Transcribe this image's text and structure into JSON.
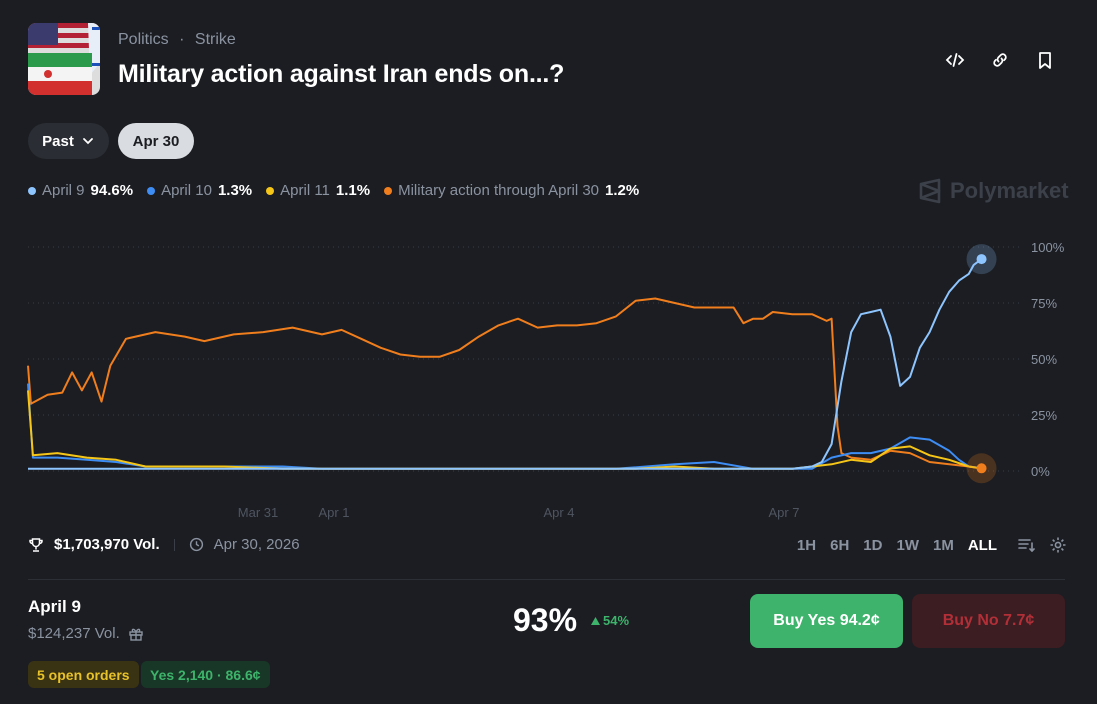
{
  "header": {
    "category": "Politics",
    "separator": "·",
    "subcategory": "Strike",
    "title": "Military action against Iran ends on...?"
  },
  "filters": {
    "past_label": "Past",
    "date_label": "Apr 30"
  },
  "legend": [
    {
      "label": "April 9",
      "value": "94.6%",
      "color": "#8ec5ff"
    },
    {
      "label": "April 10",
      "value": "1.3%",
      "color": "#3d8df5"
    },
    {
      "label": "April 11",
      "value": "1.1%",
      "color": "#f5c518"
    },
    {
      "label": "Military action through April 30",
      "value": "1.2%",
      "color": "#f07e1d"
    }
  ],
  "brand": "Polymarket",
  "chart_data": {
    "type": "line",
    "x_ticks": [
      "Mar 31",
      "Apr 1",
      "Apr 4",
      "Apr 7"
    ],
    "y_ticks": [
      "100%",
      "75%",
      "50%",
      "25%",
      "0%"
    ],
    "ylim": [
      0,
      100
    ],
    "grid": true,
    "series": [
      {
        "name": "Military action through April 30",
        "color": "#f07e1d",
        "values": [
          [
            0,
            47
          ],
          [
            0.3,
            30
          ],
          [
            2,
            34
          ],
          [
            3.5,
            35
          ],
          [
            4.5,
            44
          ],
          [
            5.5,
            36
          ],
          [
            6.5,
            44
          ],
          [
            7.5,
            31
          ],
          [
            8.4,
            47
          ],
          [
            10,
            59
          ],
          [
            13,
            62
          ],
          [
            16,
            60
          ],
          [
            18,
            58
          ],
          [
            21,
            61
          ],
          [
            24,
            62
          ],
          [
            27,
            64
          ],
          [
            30,
            61
          ],
          [
            32,
            63
          ],
          [
            34,
            59
          ],
          [
            36,
            55
          ],
          [
            38,
            52
          ],
          [
            40,
            51
          ],
          [
            42,
            51
          ],
          [
            44,
            54
          ],
          [
            46,
            60
          ],
          [
            48,
            65
          ],
          [
            50,
            68
          ],
          [
            52,
            64
          ],
          [
            54,
            65
          ],
          [
            56,
            65
          ],
          [
            58,
            66
          ],
          [
            60,
            69
          ],
          [
            62,
            76
          ],
          [
            64,
            77
          ],
          [
            66,
            75
          ],
          [
            68,
            73
          ],
          [
            70,
            73
          ],
          [
            72,
            73
          ],
          [
            73,
            66
          ],
          [
            74,
            68
          ],
          [
            75,
            68
          ],
          [
            76,
            71
          ],
          [
            78,
            70
          ],
          [
            80,
            70
          ],
          [
            81.5,
            67
          ],
          [
            82,
            68
          ],
          [
            82.6,
            20
          ],
          [
            83,
            8
          ],
          [
            84,
            6
          ],
          [
            86,
            5
          ],
          [
            88,
            9
          ],
          [
            90,
            8
          ],
          [
            92,
            4
          ],
          [
            94,
            3
          ],
          [
            96,
            2
          ],
          [
            97.3,
            1.2
          ]
        ]
      },
      {
        "name": "April 10",
        "color": "#3d8df5",
        "values": [
          [
            0,
            39
          ],
          [
            0.5,
            6
          ],
          [
            3,
            6
          ],
          [
            6,
            5
          ],
          [
            9,
            4
          ],
          [
            12,
            2
          ],
          [
            20,
            2
          ],
          [
            26,
            2
          ],
          [
            30,
            1
          ],
          [
            36,
            1
          ],
          [
            42,
            1
          ],
          [
            48,
            1
          ],
          [
            54,
            1
          ],
          [
            60,
            1
          ],
          [
            66,
            3
          ],
          [
            70,
            4
          ],
          [
            74,
            1
          ],
          [
            78,
            1
          ],
          [
            80,
            1
          ],
          [
            82,
            6
          ],
          [
            84,
            8
          ],
          [
            86,
            8
          ],
          [
            88,
            10
          ],
          [
            90,
            15
          ],
          [
            92,
            14
          ],
          [
            94,
            9
          ],
          [
            95,
            5
          ],
          [
            96,
            2
          ],
          [
            97.3,
            1.3
          ]
        ]
      },
      {
        "name": "April 11",
        "color": "#f5c518",
        "values": [
          [
            0,
            36
          ],
          [
            0.5,
            7
          ],
          [
            3,
            8
          ],
          [
            6,
            6
          ],
          [
            9,
            5
          ],
          [
            12,
            2
          ],
          [
            20,
            2
          ],
          [
            26,
            1
          ],
          [
            36,
            1
          ],
          [
            44,
            1
          ],
          [
            50,
            1
          ],
          [
            56,
            1
          ],
          [
            62,
            1
          ],
          [
            66,
            2
          ],
          [
            70,
            1
          ],
          [
            74,
            1
          ],
          [
            78,
            1
          ],
          [
            82,
            3
          ],
          [
            84,
            5
          ],
          [
            86,
            4
          ],
          [
            88,
            10
          ],
          [
            90,
            11
          ],
          [
            92,
            7
          ],
          [
            94,
            5
          ],
          [
            96,
            2
          ],
          [
            97.3,
            1.1
          ]
        ]
      },
      {
        "name": "April 9",
        "color": "#8ec5ff",
        "values": [
          [
            0,
            1
          ],
          [
            78,
            1
          ],
          [
            80,
            2
          ],
          [
            81,
            4
          ],
          [
            82,
            12
          ],
          [
            83,
            40
          ],
          [
            84,
            62
          ],
          [
            85,
            70
          ],
          [
            86,
            71
          ],
          [
            87,
            72
          ],
          [
            88,
            60
          ],
          [
            89,
            38
          ],
          [
            90,
            42
          ],
          [
            91,
            55
          ],
          [
            92,
            62
          ],
          [
            93,
            72
          ],
          [
            94,
            80
          ],
          [
            95,
            85
          ],
          [
            96,
            88
          ],
          [
            96.5,
            92
          ],
          [
            97.3,
            94.6
          ]
        ]
      }
    ]
  },
  "stats": {
    "volume": "$1,703,970 Vol.",
    "end_date": "Apr 30, 2026"
  },
  "ranges": [
    "1H",
    "6H",
    "1D",
    "1W",
    "1M",
    "ALL"
  ],
  "active_range": "ALL",
  "outcome": {
    "name": "April 9",
    "volume": "$124,237 Vol.",
    "chance": "93%",
    "change": "54%",
    "buy_yes_label": "Buy Yes",
    "buy_yes_price": "94.2¢",
    "buy_no_label": "Buy No",
    "buy_no_price": "7.7¢",
    "open_orders": "5 open orders",
    "position": "Yes 2,140 · 86.6¢"
  }
}
